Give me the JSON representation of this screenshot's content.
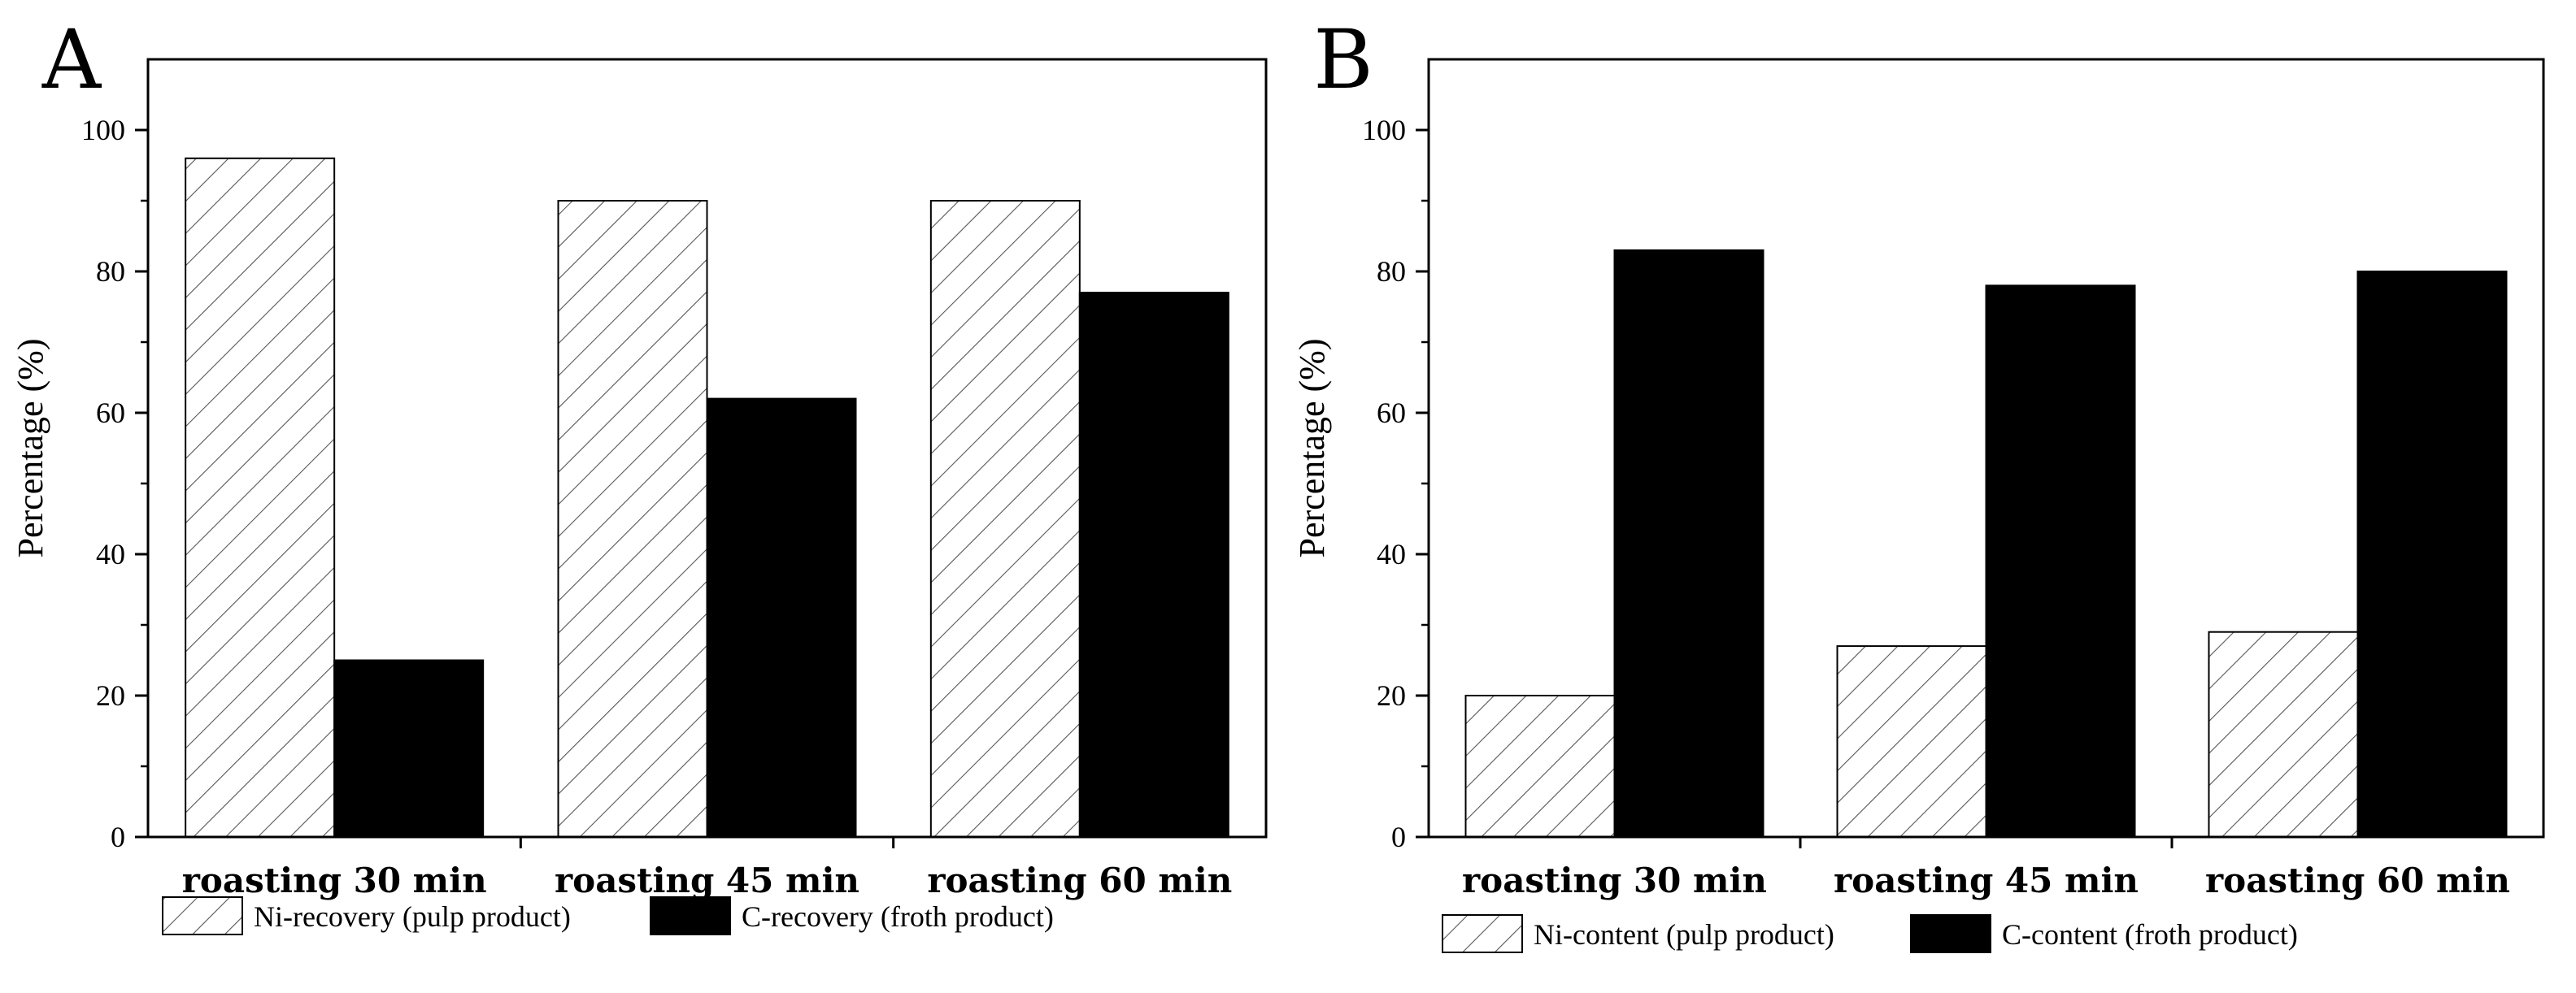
{
  "chart_data": [
    {
      "type": "bar",
      "panel": "A",
      "categories": [
        "roasting 30 min",
        "roasting 45 min",
        "roasting 60 min"
      ],
      "series": [
        {
          "name": "Ni-recovery (pulp product)",
          "values": [
            96,
            90,
            90
          ],
          "pattern": "hatch"
        },
        {
          "name": "C-recovery (froth product)",
          "values": [
            25,
            62,
            77
          ],
          "pattern": "solid"
        }
      ],
      "title": "",
      "xlabel": "",
      "ylabel": "Percentage (%)",
      "ylim": [
        0,
        110
      ],
      "yticks": [
        0,
        20,
        40,
        60,
        80,
        100
      ],
      "grid": false,
      "legend_position": "bottom"
    },
    {
      "type": "bar",
      "panel": "B",
      "categories": [
        "roasting 30 min",
        "roasting 45 min",
        "roasting 60 min"
      ],
      "series": [
        {
          "name": "Ni-content (pulp product)",
          "values": [
            20,
            27,
            29
          ],
          "pattern": "hatch"
        },
        {
          "name": "C-content (froth product)",
          "values": [
            83,
            78,
            80
          ],
          "pattern": "solid"
        }
      ],
      "title": "",
      "xlabel": "",
      "ylabel": "Percentage (%)",
      "ylim": [
        0,
        110
      ],
      "yticks": [
        0,
        20,
        40,
        60,
        80,
        100
      ],
      "grid": false,
      "legend_position": "bottom"
    }
  ],
  "colors": {
    "solid": "#000000",
    "hatch_fill": "#ffffff",
    "hatch_line": "#555555",
    "axis": "#000000"
  }
}
